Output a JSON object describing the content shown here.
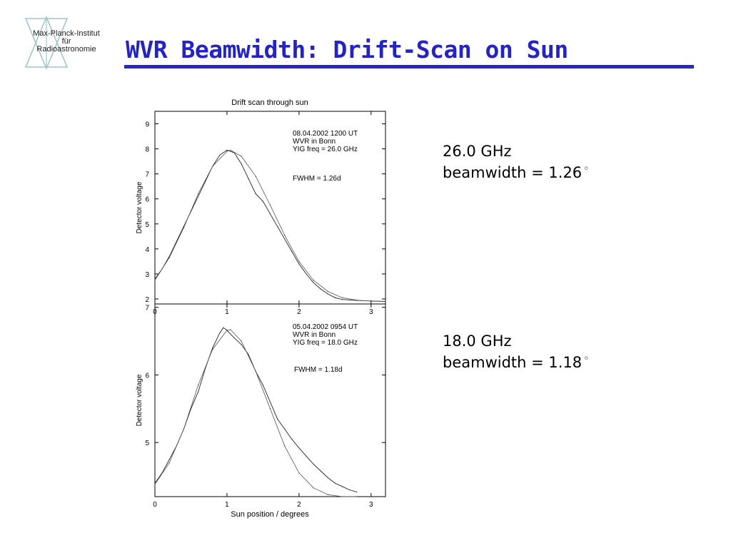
{
  "logo": {
    "line1": "Max-Planck-Institut",
    "line2": "für",
    "line3": "Radioastronomie"
  },
  "slide": {
    "title": "WVR Beamwidth: Drift-Scan on Sun",
    "title_color": "#2323c8",
    "annotations": [
      {
        "freq": "26.0 GHz",
        "beamwidth": "beamwidth = 1.26",
        "unit": "◦"
      },
      {
        "freq": "18.0 GHz",
        "beamwidth": "beamwidth = 1.18",
        "unit": "◦"
      }
    ]
  },
  "chart_data": [
    {
      "type": "line",
      "title": "Drift scan through sun",
      "xlabel": "",
      "ylabel": "Detector voltage",
      "xlim": [
        0,
        3.2
      ],
      "ylim": [
        1.8,
        9.5
      ],
      "xticks": [
        0,
        1,
        2,
        3
      ],
      "yticks": [
        2,
        3,
        4,
        5,
        6,
        7,
        8,
        9
      ],
      "notes": [
        "08.04.2002 1200 UT",
        "WVR in Bonn",
        "YIG freq = 26.0 GHz"
      ],
      "fwhm_label": "FWHM = 1.26d",
      "series": [
        {
          "values": [
            [
              0.0,
              2.8
            ],
            [
              0.1,
              3.2
            ],
            [
              0.2,
              3.7
            ],
            [
              0.3,
              4.3
            ],
            [
              0.4,
              4.9
            ],
            [
              0.5,
              5.5
            ],
            [
              0.6,
              6.1
            ],
            [
              0.7,
              6.7
            ],
            [
              0.8,
              7.3
            ],
            [
              0.9,
              7.75
            ],
            [
              1.0,
              7.95
            ],
            [
              1.1,
              7.85
            ],
            [
              1.2,
              7.4
            ],
            [
              1.3,
              6.8
            ],
            [
              1.4,
              6.2
            ],
            [
              1.5,
              5.9
            ],
            [
              1.6,
              5.4
            ],
            [
              1.7,
              4.9
            ],
            [
              1.8,
              4.4
            ],
            [
              1.9,
              3.9
            ],
            [
              2.0,
              3.4
            ],
            [
              2.1,
              3.0
            ],
            [
              2.2,
              2.65
            ],
            [
              2.3,
              2.4
            ],
            [
              2.4,
              2.2
            ],
            [
              2.5,
              2.05
            ],
            [
              2.6,
              1.98
            ],
            [
              2.8,
              1.94
            ],
            [
              3.0,
              1.92
            ],
            [
              3.2,
              1.9
            ]
          ]
        },
        {
          "values": [
            [
              0.0,
              2.75
            ],
            [
              0.2,
              3.65
            ],
            [
              0.4,
              4.85
            ],
            [
              0.6,
              6.2
            ],
            [
              0.8,
              7.3
            ],
            [
              1.0,
              7.9
            ],
            [
              1.05,
              7.95
            ],
            [
              1.2,
              7.7
            ],
            [
              1.4,
              6.9
            ],
            [
              1.6,
              5.75
            ],
            [
              1.8,
              4.55
            ],
            [
              2.0,
              3.5
            ],
            [
              2.2,
              2.75
            ],
            [
              2.4,
              2.3
            ],
            [
              2.6,
              2.05
            ],
            [
              2.8,
              1.95
            ],
            [
              3.0,
              1.91
            ],
            [
              3.2,
              1.9
            ]
          ]
        }
      ]
    },
    {
      "type": "line",
      "title": "",
      "xlabel": "Sun position / degrees",
      "ylabel": "Detector voltage",
      "xlim": [
        0,
        3.2
      ],
      "ylim": [
        4.2,
        7.05
      ],
      "xticks": [
        0,
        1,
        2,
        3
      ],
      "yticks": [
        5,
        6,
        7
      ],
      "notes": [
        "05.04.2002 0954 UT",
        "WVR in Bonn",
        "YIG freq = 18.0 GHz"
      ],
      "fwhm_label": "FWHM = 1.18d",
      "series": [
        {
          "values": [
            [
              0.0,
              4.4
            ],
            [
              0.1,
              4.55
            ],
            [
              0.2,
              4.75
            ],
            [
              0.3,
              4.95
            ],
            [
              0.4,
              5.2
            ],
            [
              0.5,
              5.5
            ],
            [
              0.6,
              5.75
            ],
            [
              0.7,
              6.1
            ],
            [
              0.8,
              6.4
            ],
            [
              0.9,
              6.62
            ],
            [
              0.95,
              6.7
            ],
            [
              1.0,
              6.66
            ],
            [
              1.1,
              6.55
            ],
            [
              1.2,
              6.45
            ],
            [
              1.3,
              6.3
            ],
            [
              1.4,
              6.05
            ],
            [
              1.5,
              5.85
            ],
            [
              1.6,
              5.6
            ],
            [
              1.7,
              5.35
            ],
            [
              1.8,
              5.2
            ],
            [
              1.9,
              5.05
            ],
            [
              2.0,
              4.92
            ],
            [
              2.1,
              4.8
            ],
            [
              2.2,
              4.68
            ],
            [
              2.3,
              4.58
            ],
            [
              2.4,
              4.48
            ],
            [
              2.5,
              4.4
            ],
            [
              2.6,
              4.35
            ],
            [
              2.7,
              4.3
            ],
            [
              2.8,
              4.27
            ]
          ]
        },
        {
          "values": [
            [
              0.0,
              4.38
            ],
            [
              0.2,
              4.7
            ],
            [
              0.4,
              5.2
            ],
            [
              0.6,
              5.85
            ],
            [
              0.8,
              6.38
            ],
            [
              1.0,
              6.66
            ],
            [
              1.05,
              6.67
            ],
            [
              1.2,
              6.5
            ],
            [
              1.4,
              6.05
            ],
            [
              1.6,
              5.5
            ],
            [
              1.8,
              4.95
            ],
            [
              2.0,
              4.55
            ],
            [
              2.2,
              4.33
            ],
            [
              2.4,
              4.23
            ],
            [
              2.6,
              4.2
            ],
            [
              2.8,
              4.2
            ]
          ]
        }
      ]
    }
  ]
}
